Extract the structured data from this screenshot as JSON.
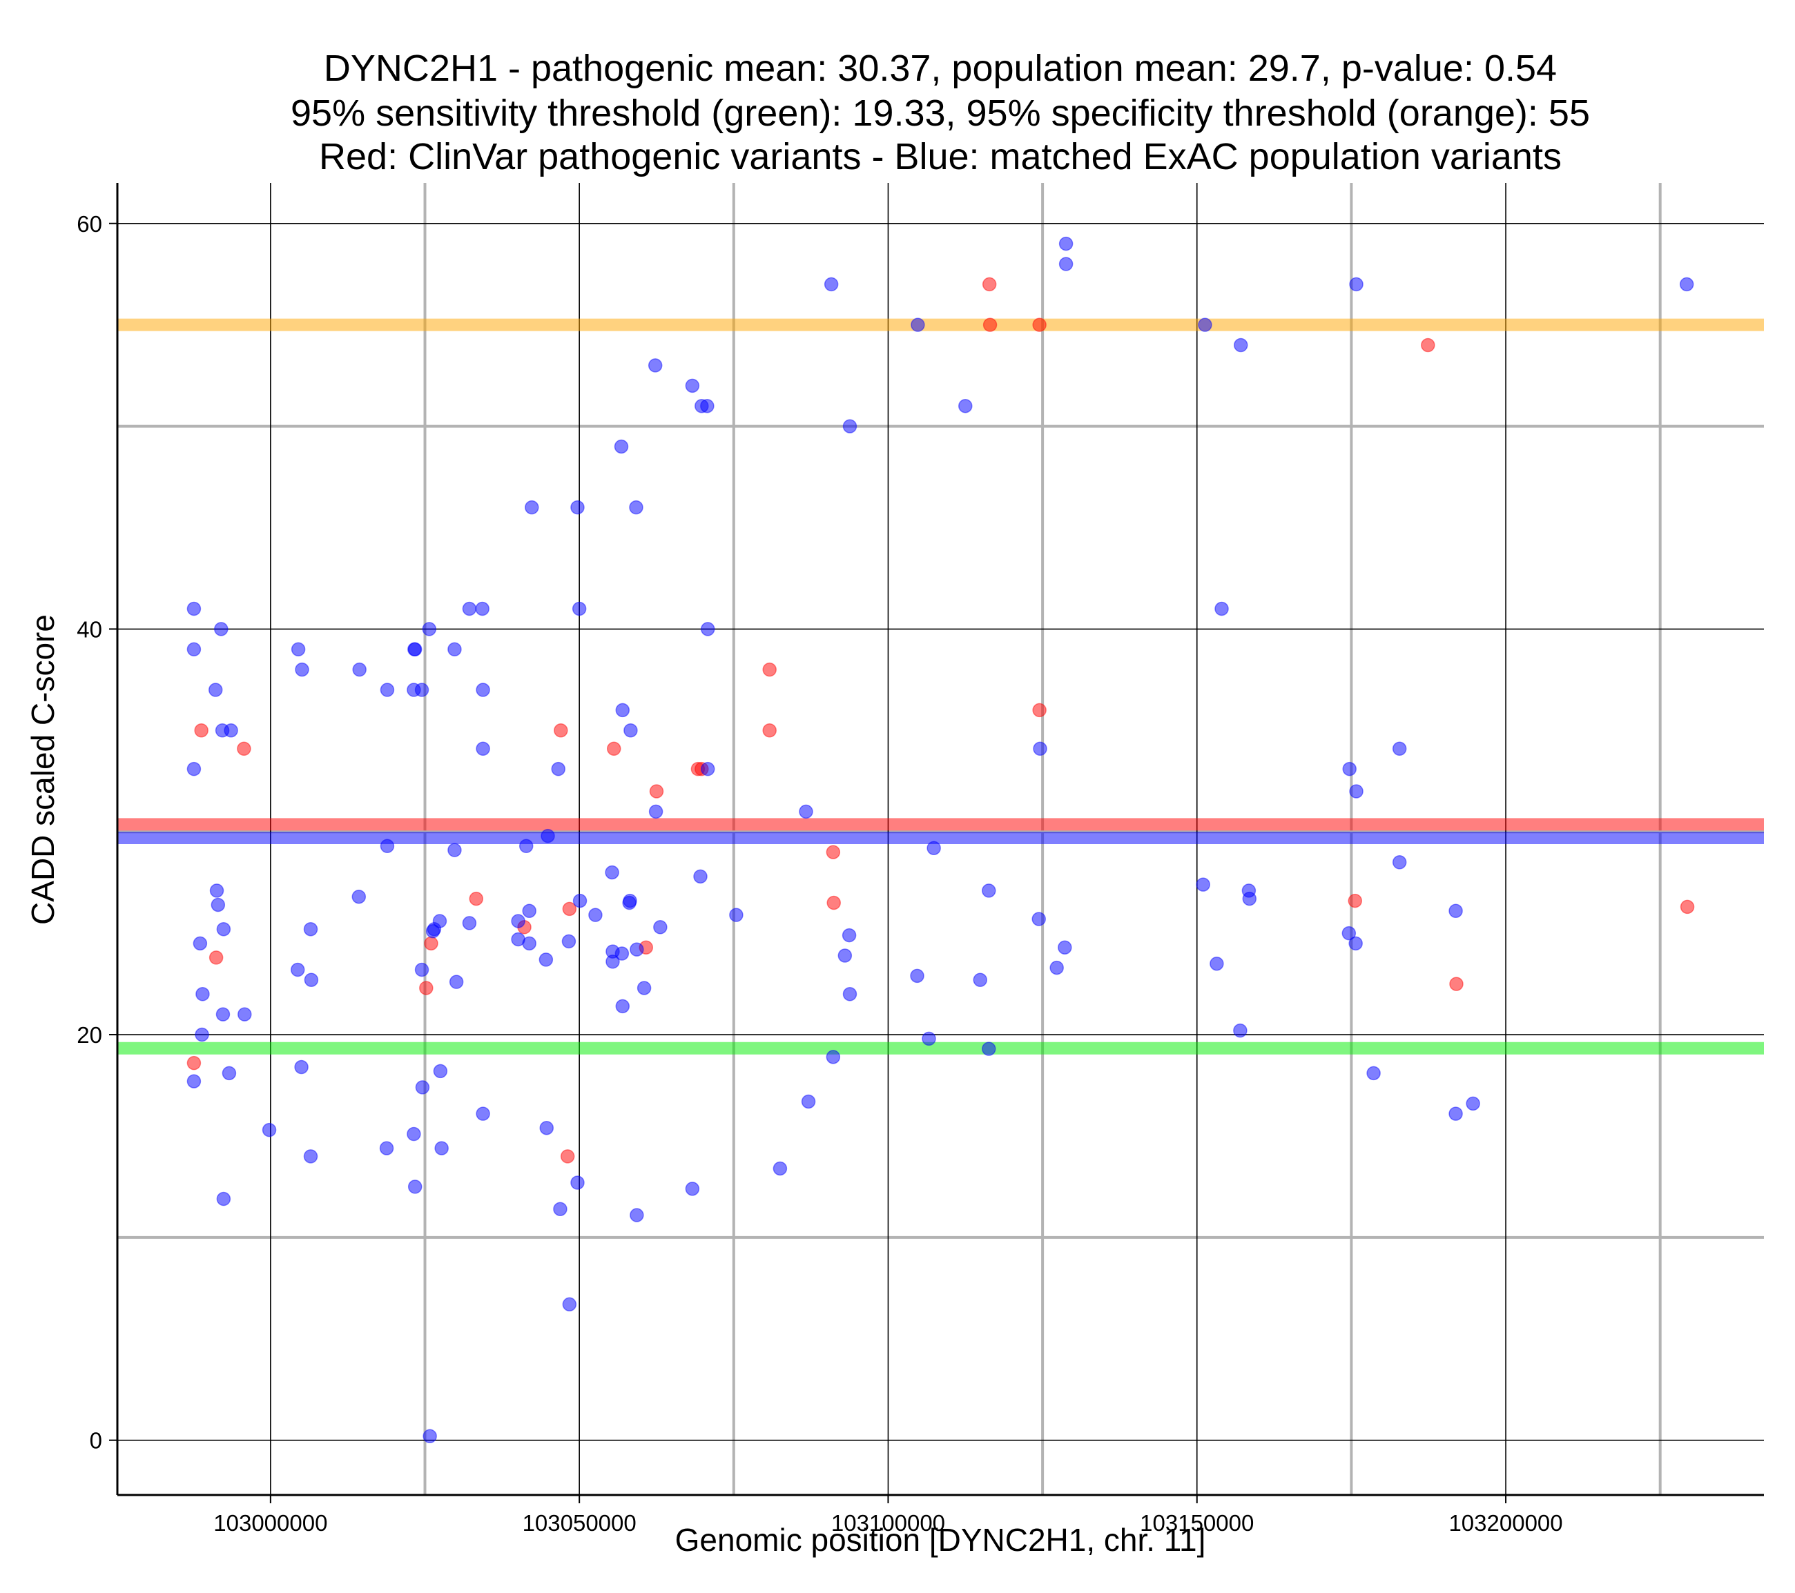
{
  "chart_data": {
    "type": "scatter",
    "title_lines": [
      "DYNC2H1 - pathogenic mean: 30.37, population mean: 29.7, p-value: 0.54",
      "95% sensitivity threshold (green): 19.33, 95% specificity threshold (orange): 55",
      "Red: ClinVar pathogenic variants - Blue: matched ExAC population variants"
    ],
    "xlabel": "Genomic position [DYNC2H1, chr. 11]",
    "ylabel": "CADD scaled C-score",
    "xlim": [
      102975200,
      103241800
    ],
    "ylim": [
      -2.7,
      62.0
    ],
    "x_ticks": [
      103000000,
      103050000,
      103100000,
      103150000,
      103200000
    ],
    "x_tick_labels": [
      "103000000",
      "103050000",
      "103100000",
      "103150000",
      "103200000"
    ],
    "x_minor_gridlines": [
      103025000,
      103075000,
      103125000,
      103175000,
      103225000
    ],
    "y_ticks": [
      0,
      20,
      40,
      60
    ],
    "y_tick_labels": [
      "0",
      "20",
      "40",
      "60"
    ],
    "y_minor_gridlines": [
      10,
      30,
      50
    ],
    "grid": true,
    "reference_lines": [
      {
        "name": "pathogenic mean",
        "y": 30.37,
        "color": "#ff0000",
        "opacity": 0.5
      },
      {
        "name": "population mean",
        "y": 29.7,
        "color": "#0000ff",
        "opacity": 0.5
      },
      {
        "name": "95% sensitivity threshold",
        "y": 19.33,
        "color": "#00ee00",
        "opacity": 0.5
      },
      {
        "name": "95% specificity threshold",
        "y": 55,
        "color": "#ffa500",
        "opacity": 0.5
      }
    ],
    "series": [
      {
        "name": "ClinVar pathogenic variants",
        "color": "#ff0000",
        "opacity": 0.5,
        "points": [
          [
            102987600,
            18.6
          ],
          [
            102988800,
            35.0
          ],
          [
            102991200,
            23.8
          ],
          [
            102995700,
            34.1
          ],
          [
            103025200,
            22.3
          ],
          [
            103026000,
            24.5
          ],
          [
            103033300,
            26.7
          ],
          [
            103041100,
            25.3
          ],
          [
            103047000,
            35.0
          ],
          [
            103048100,
            14.0
          ],
          [
            103048400,
            26.2
          ],
          [
            103055600,
            34.1
          ],
          [
            103060800,
            24.3
          ],
          [
            103062500,
            32.0
          ],
          [
            103069200,
            33.1
          ],
          [
            103069800,
            33.1
          ],
          [
            103080800,
            38.0
          ],
          [
            103080800,
            35.0
          ],
          [
            103091100,
            29.0
          ],
          [
            103091200,
            26.5
          ],
          [
            103116400,
            57.0
          ],
          [
            103116500,
            55.0
          ],
          [
            103124500,
            36.0
          ],
          [
            103124500,
            55.0
          ],
          [
            103175600,
            26.6
          ],
          [
            103187400,
            54.0
          ],
          [
            103192000,
            22.5
          ],
          [
            103229400,
            26.3
          ]
        ]
      },
      {
        "name": "matched ExAC population variants",
        "color": "#0000ff",
        "opacity": 0.5,
        "points": [
          [
            102987600,
            41.0
          ],
          [
            102987600,
            39.0
          ],
          [
            102987600,
            33.1
          ],
          [
            102987600,
            17.7
          ],
          [
            102988600,
            24.5
          ],
          [
            102989000,
            22.0
          ],
          [
            102988900,
            20.0
          ],
          [
            102991100,
            37.0
          ],
          [
            102991300,
            27.1
          ],
          [
            102991500,
            26.4
          ],
          [
            102992000,
            40.0
          ],
          [
            102992200,
            35.0
          ],
          [
            102992400,
            25.2
          ],
          [
            102992300,
            21.0
          ],
          [
            102992400,
            11.9
          ],
          [
            102993600,
            35.0
          ],
          [
            102993300,
            18.1
          ],
          [
            102995800,
            21.0
          ],
          [
            102999800,
            15.3
          ],
          [
            103004500,
            39.0
          ],
          [
            103004400,
            23.2
          ],
          [
            103005100,
            38.0
          ],
          [
            103005000,
            18.4
          ],
          [
            103006500,
            25.2
          ],
          [
            103006600,
            22.7
          ],
          [
            103006500,
            14.0
          ],
          [
            103014400,
            38.0
          ],
          [
            103014300,
            26.8
          ],
          [
            103018900,
            37.0
          ],
          [
            103018900,
            29.3
          ],
          [
            103018800,
            14.4
          ],
          [
            103023300,
            39.0
          ],
          [
            103023400,
            39.0
          ],
          [
            103023200,
            37.0
          ],
          [
            103023200,
            15.1
          ],
          [
            103023400,
            12.5
          ],
          [
            103024500,
            37.0
          ],
          [
            103024500,
            23.2
          ],
          [
            103024600,
            17.4
          ],
          [
            103025700,
            40.0
          ],
          [
            103025800,
            0.2
          ],
          [
            103026300,
            25.1
          ],
          [
            103026500,
            25.2
          ],
          [
            103027400,
            25.6
          ],
          [
            103027500,
            18.2
          ],
          [
            103027700,
            14.4
          ],
          [
            103029800,
            39.0
          ],
          [
            103029800,
            29.1
          ],
          [
            103030100,
            22.6
          ],
          [
            103032200,
            41.0
          ],
          [
            103032200,
            25.5
          ],
          [
            103034300,
            41.0
          ],
          [
            103034400,
            37.0
          ],
          [
            103034400,
            34.1
          ],
          [
            103034400,
            16.1
          ],
          [
            103040100,
            25.6
          ],
          [
            103040100,
            24.7
          ],
          [
            103041400,
            29.3
          ],
          [
            103042300,
            46.0
          ],
          [
            103041900,
            26.1
          ],
          [
            103041900,
            24.5
          ],
          [
            103044600,
            23.7
          ],
          [
            103044700,
            15.4
          ],
          [
            103044900,
            29.8
          ],
          [
            103046600,
            33.1
          ],
          [
            103046900,
            11.4
          ],
          [
            103048300,
            24.6
          ],
          [
            103048400,
            6.7
          ],
          [
            103049700,
            46.0
          ],
          [
            103050000,
            41.0
          ],
          [
            103050100,
            26.6
          ],
          [
            103049700,
            12.7
          ],
          [
            103052600,
            25.9
          ],
          [
            103055300,
            28.0
          ],
          [
            103055400,
            24.1
          ],
          [
            103055400,
            23.6
          ],
          [
            103056800,
            49.0
          ],
          [
            103057000,
            36.0
          ],
          [
            103056900,
            24.0
          ],
          [
            103057000,
            21.4
          ],
          [
            103058300,
            35.0
          ],
          [
            103058100,
            26.5
          ],
          [
            103058200,
            26.6
          ],
          [
            103059200,
            46.0
          ],
          [
            103059300,
            24.2
          ],
          [
            103059300,
            11.1
          ],
          [
            103060500,
            22.3
          ],
          [
            103062300,
            53.0
          ],
          [
            103062400,
            31.0
          ],
          [
            103063100,
            25.3
          ],
          [
            103068300,
            52.0
          ],
          [
            103068300,
            12.4
          ],
          [
            103069800,
            51.0
          ],
          [
            103069600,
            27.8
          ],
          [
            103070700,
            51.0
          ],
          [
            103070800,
            40.0
          ],
          [
            103070800,
            33.1
          ],
          [
            103075400,
            25.9
          ],
          [
            103082500,
            13.4
          ],
          [
            103086700,
            31.0
          ],
          [
            103087100,
            16.7
          ],
          [
            103090800,
            57.0
          ],
          [
            103091100,
            18.9
          ],
          [
            103093000,
            23.9
          ],
          [
            103093800,
            50.0
          ],
          [
            103093700,
            24.9
          ],
          [
            103093800,
            22.0
          ],
          [
            103104800,
            55.0
          ],
          [
            103104700,
            22.9
          ],
          [
            103106600,
            19.8
          ],
          [
            103107400,
            29.2
          ],
          [
            103112500,
            51.0
          ],
          [
            103114900,
            22.7
          ],
          [
            103116300,
            27.1
          ],
          [
            103116300,
            19.3
          ],
          [
            103124600,
            34.1
          ],
          [
            103124400,
            25.7
          ],
          [
            103127300,
            23.3
          ],
          [
            103128800,
            59.0
          ],
          [
            103128800,
            58.0
          ],
          [
            103128600,
            24.3
          ],
          [
            103151300,
            55.0
          ],
          [
            103151000,
            27.4
          ],
          [
            103153200,
            23.5
          ],
          [
            103154000,
            41.0
          ],
          [
            103157100,
            54.0
          ],
          [
            103157000,
            20.2
          ],
          [
            103158400,
            27.1
          ],
          [
            103158500,
            26.7
          ],
          [
            103174700,
            33.1
          ],
          [
            103174600,
            25.0
          ],
          [
            103175800,
            57.0
          ],
          [
            103175800,
            32.0
          ],
          [
            103175700,
            24.5
          ],
          [
            103178600,
            18.1
          ],
          [
            103182800,
            34.1
          ],
          [
            103182800,
            28.5
          ],
          [
            103191900,
            26.1
          ],
          [
            103191900,
            16.1
          ],
          [
            103194700,
            16.6
          ],
          [
            103229300,
            57.0
          ]
        ]
      }
    ]
  }
}
